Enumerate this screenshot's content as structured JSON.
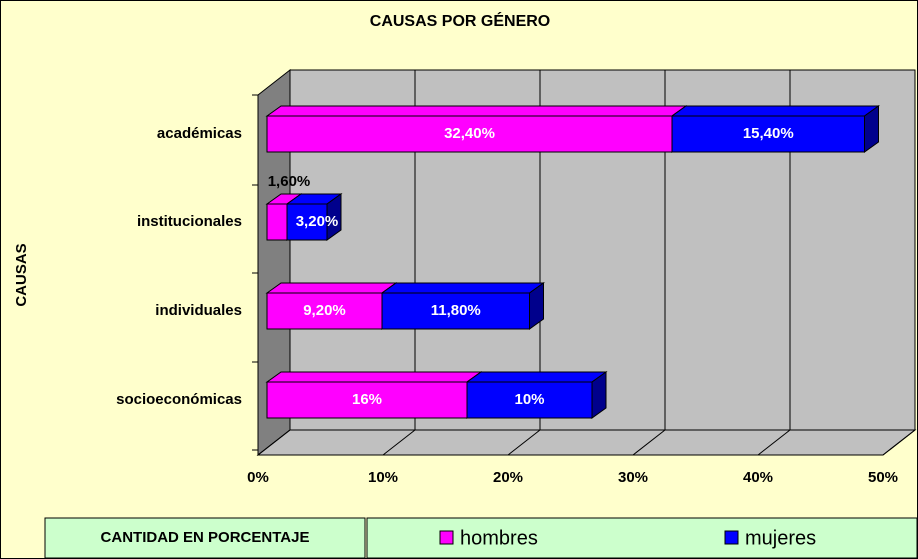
{
  "chart_data": {
    "type": "bar3d_stacked_horizontal",
    "title": "CAUSAS POR GÉNERO",
    "y_axis_label": "CAUSAS",
    "x_axis_label": "CANTIDAD EN PORCENTAJE",
    "categories": [
      "académicas",
      "institucionales",
      "individuales",
      "socioeconómicas"
    ],
    "series": [
      {
        "name": "hombres",
        "color": "#ff00ff",
        "values": [
          32.4,
          1.6,
          9.2,
          16
        ],
        "value_labels": [
          "32,40%",
          "1,60%",
          "9,20%",
          "16%"
        ]
      },
      {
        "name": "mujeres",
        "color": "#0000ff",
        "values": [
          15.4,
          3.2,
          11.8,
          10
        ],
        "value_labels": [
          "15,40%",
          "3,20%",
          "11,80%",
          "10%"
        ]
      }
    ],
    "xlim": [
      0,
      50
    ],
    "xticks": [
      {
        "value": 0,
        "label": "0%"
      },
      {
        "value": 10,
        "label": "10%"
      },
      {
        "value": 20,
        "label": "20%"
      },
      {
        "value": 30,
        "label": "30%"
      },
      {
        "value": 40,
        "label": "40%"
      },
      {
        "value": 50,
        "label": "50%"
      }
    ],
    "grid": true,
    "legend": "bottom"
  }
}
